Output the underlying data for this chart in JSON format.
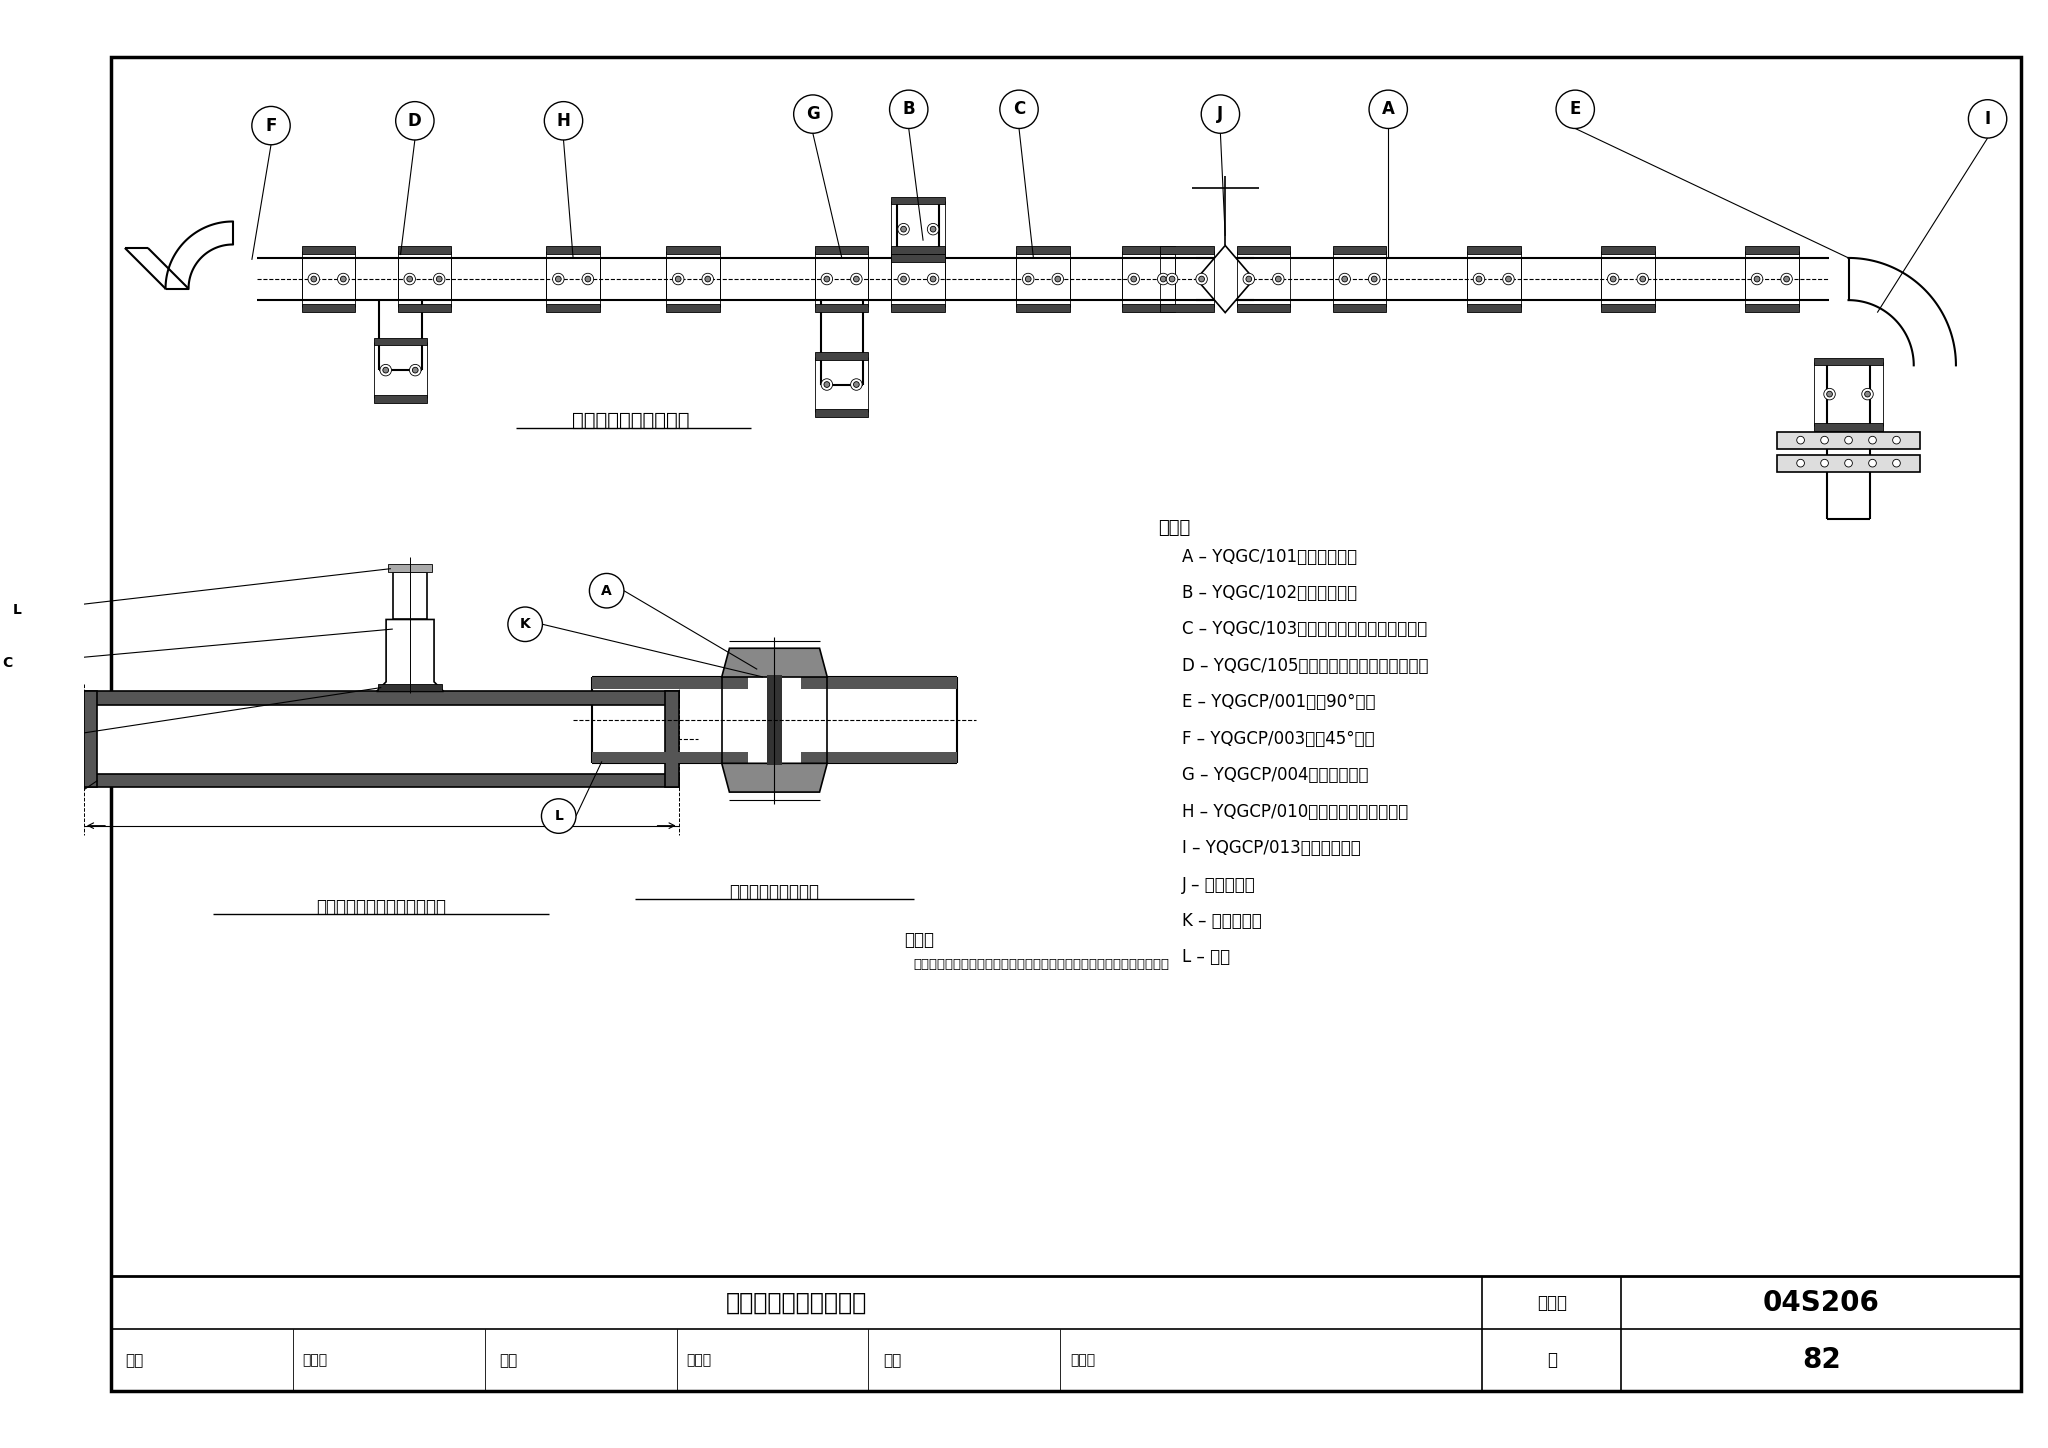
{
  "bg_color": "#ffffff",
  "outer_border_color": "#000000",
  "main_diagram_title": "卡箌式管道联接示意图",
  "left_diagram_title": "卡箌机械开孔三通连接示意图",
  "right_diagram_title": "卡箌直管连接示意图",
  "table_title": "卡箌式管道连接示意图",
  "tujihao_label": "图集号",
  "tujihao_val": "04S206",
  "page_label": "页",
  "page_num": "82",
  "shenhe_label": "审核",
  "jiaodui_label": "校对",
  "sheji_label": "设计",
  "shenhe_sig": "乙棅钓",
  "jiaodui_sig": "高之仙",
  "sheji_sig": "刘川中",
  "note1_title": "说明：",
  "note2_title": "说明：",
  "note2_text": "本图根据广东省佛山市南海永兴阀门制造有限公司提供的技术资料编制．",
  "legend_lines": [
    "A – YQGC/101　刑尴性接头",
    "B – YQGC/102　刑簺性接头",
    "C – YQGC/103　型（螺纹式）机械开孔三通",
    "D – YQGC/105　型（卡箌式）机械开孔三通",
    "E – YQGCP/001　型90°弯头",
    "F – YQGCP/003　型45°弯头",
    "G – YQGCP/004　型等径三通",
    "H – YQGCP/010　型（卡箌式）异径管",
    "I – YQGCP/013　卡箌式法兰",
    "J – 卡箌式阀门",
    "K – 橡胶密封圈",
    "L – 钙管"
  ]
}
